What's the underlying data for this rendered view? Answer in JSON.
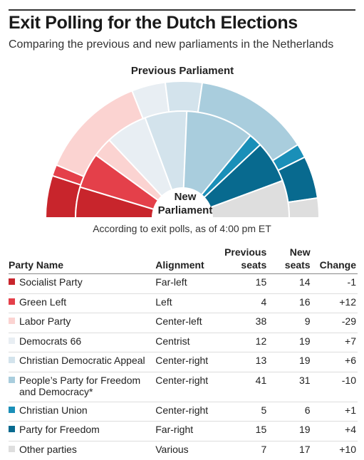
{
  "title": "Exit Polling for the Dutch Elections",
  "subtitle": "Comparing the previous and new parliaments in the Netherlands",
  "chart_data": {
    "type": "semicircle-parliament",
    "outer_ring_label": "Previous Parliament",
    "inner_ring_label_line1": "New",
    "inner_ring_label_line2": "Parliament",
    "note": "According to exit polls, as of 4:00 pm ET",
    "columns": {
      "party": "Party Name",
      "alignment": "Alignment",
      "previous_line1": "Previous",
      "previous_line2": "seats",
      "new_line1": "New",
      "new_line2": "seats",
      "change": "Change"
    },
    "parties": [
      {
        "name": "Socialist Party",
        "alignment": "Far-left",
        "previous": 15,
        "new": 14,
        "change": "-1",
        "color": "#c8252c"
      },
      {
        "name": "Green Left",
        "alignment": "Left",
        "previous": 4,
        "new": 16,
        "change": "+12",
        "color": "#e4404a"
      },
      {
        "name": "Labor Party",
        "alignment": "Center-left",
        "previous": 38,
        "new": 9,
        "change": "-29",
        "color": "#fbd3d1"
      },
      {
        "name": "Democrats 66",
        "alignment": "Centrist",
        "previous": 12,
        "new": 19,
        "change": "+7",
        "color": "#e8eef3"
      },
      {
        "name": "Christian Democratic Appeal",
        "alignment": "Center-right",
        "previous": 13,
        "new": 19,
        "change": "+6",
        "color": "#d3e3ec"
      },
      {
        "name": "People’s Party for Freedom and Democracy*",
        "name_line1": "People’s Party for Freedom",
        "name_line2": "and Democracy*",
        "alignment": "Center-right",
        "previous": 41,
        "new": 31,
        "change": "-10",
        "color": "#a9cddd"
      },
      {
        "name": "Christian Union",
        "alignment": "Center-right",
        "previous": 5,
        "new": 6,
        "change": "+1",
        "color": "#1a8fb8"
      },
      {
        "name": "Party for Freedom",
        "alignment": "Far-right",
        "previous": 15,
        "new": 19,
        "change": "+4",
        "color": "#086a8f"
      },
      {
        "name": "Other parties",
        "alignment": "Various",
        "previous": 7,
        "new": 17,
        "change": "+10",
        "color": "#dedede"
      }
    ],
    "total_seats": 150
  }
}
